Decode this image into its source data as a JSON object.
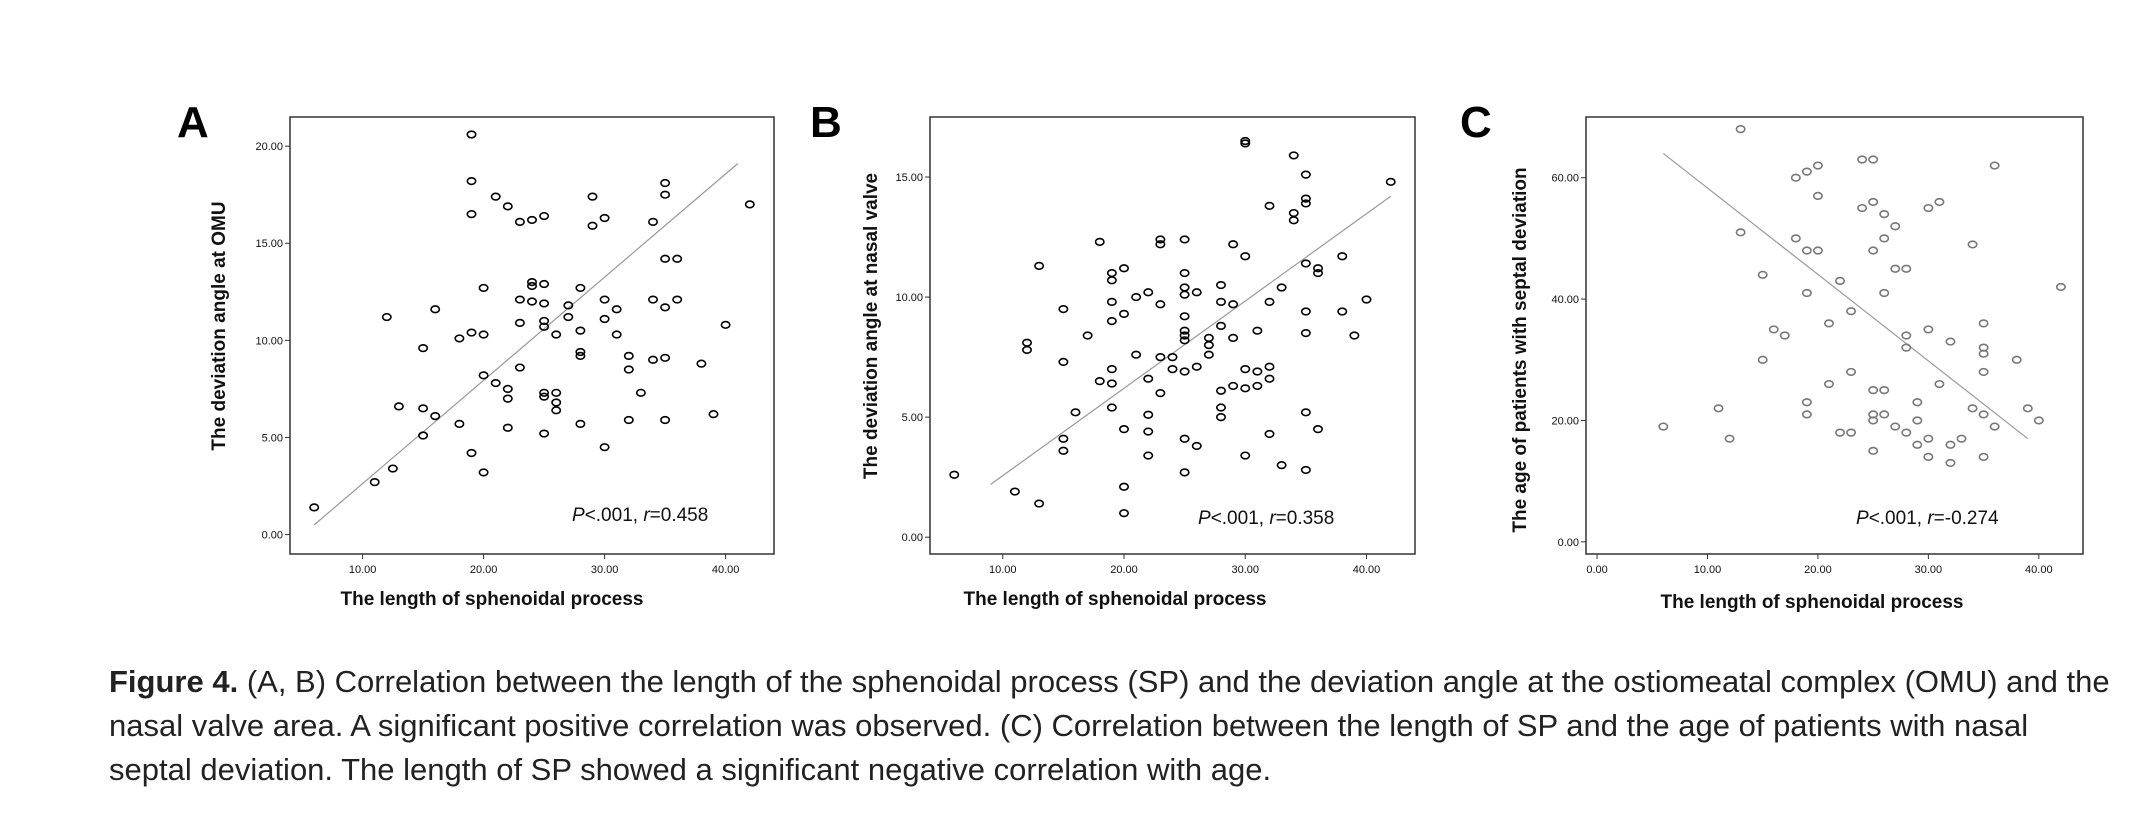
{
  "caption": {
    "label": "Figure 4.",
    "text": "(A, B) Correlation between the length of the sphenoidal process (SP) and the deviation angle at the ostiomeatal complex (OMU) and the nasal valve area. A significant positive correlation was observed. (C) Correlation between the length of SP and the age of patients with nasal septal deviation. The length of SP showed a significant negative correlation with age."
  },
  "chart_data": [
    {
      "panel": "A",
      "type": "scatter",
      "xlabel": "The length of sphenoidal process",
      "ylabel": "The deviation angle at OMU",
      "xlim": [
        4,
        44
      ],
      "ylim": [
        -1,
        21.5
      ],
      "xticks": [
        "10.00",
        "20.00",
        "30.00",
        "40.00"
      ],
      "yticks": [
        "0.00",
        "5.00",
        "10.00",
        "15.00",
        "20.00"
      ],
      "stat": {
        "p": "P",
        "p_rest": "<.001, ",
        "r": "r",
        "r_rest": "=0.458"
      },
      "color": "#000000",
      "trendline": [
        [
          6,
          0.5
        ],
        [
          41,
          19.1
        ]
      ],
      "points": [
        [
          6,
          1.4
        ],
        [
          11,
          2.7
        ],
        [
          12.5,
          3.4
        ],
        [
          15,
          5.1
        ],
        [
          15,
          6.5
        ],
        [
          16,
          6.1
        ],
        [
          12,
          11.2
        ],
        [
          13,
          6.6
        ],
        [
          15,
          9.6
        ],
        [
          16,
          11.6
        ],
        [
          18,
          10.1
        ],
        [
          18,
          5.7
        ],
        [
          19,
          4.2
        ],
        [
          19,
          10.4
        ],
        [
          19,
          16.5
        ],
        [
          19,
          18.2
        ],
        [
          19,
          20.6
        ],
        [
          20,
          3.2
        ],
        [
          20,
          8.2
        ],
        [
          20,
          10.3
        ],
        [
          20,
          12.7
        ],
        [
          21,
          7.8
        ],
        [
          21,
          17.4
        ],
        [
          22,
          7
        ],
        [
          22,
          7.5
        ],
        [
          22,
          5.5
        ],
        [
          22,
          16.9
        ],
        [
          23,
          8.6
        ],
        [
          23,
          10.9
        ],
        [
          23,
          12.1
        ],
        [
          23,
          16.1
        ],
        [
          24,
          12.8
        ],
        [
          24,
          13
        ],
        [
          24,
          12
        ],
        [
          24,
          16.2
        ],
        [
          25,
          5.2
        ],
        [
          25,
          7.1
        ],
        [
          25,
          7.3
        ],
        [
          25,
          10.7
        ],
        [
          25,
          11
        ],
        [
          25,
          11.9
        ],
        [
          25,
          12.9
        ],
        [
          25,
          16.4
        ],
        [
          26,
          6.4
        ],
        [
          26,
          6.8
        ],
        [
          26,
          7.3
        ],
        [
          26,
          10.3
        ],
        [
          27,
          11.2
        ],
        [
          27,
          11.8
        ],
        [
          28,
          5.7
        ],
        [
          28,
          9.2
        ],
        [
          28,
          9.4
        ],
        [
          28,
          10.5
        ],
        [
          28,
          12.7
        ],
        [
          29,
          15.9
        ],
        [
          29,
          17.4
        ],
        [
          30,
          4.5
        ],
        [
          30,
          11.1
        ],
        [
          30,
          12.1
        ],
        [
          30,
          16.3
        ],
        [
          31,
          10.3
        ],
        [
          31,
          11.6
        ],
        [
          32,
          5.9
        ],
        [
          32,
          8.5
        ],
        [
          32,
          9.2
        ],
        [
          33,
          7.3
        ],
        [
          34,
          9
        ],
        [
          34,
          12.1
        ],
        [
          34,
          16.1
        ],
        [
          35,
          5.9
        ],
        [
          35,
          9.1
        ],
        [
          35,
          11.7
        ],
        [
          35,
          14.2
        ],
        [
          35,
          17.5
        ],
        [
          35,
          18.1
        ],
        [
          36,
          12.1
        ],
        [
          36,
          14.2
        ],
        [
          38,
          8.8
        ],
        [
          39,
          6.2
        ],
        [
          40,
          10.8
        ],
        [
          42,
          17
        ]
      ]
    },
    {
      "panel": "B",
      "type": "scatter",
      "xlabel": "The length of sphenoidal process",
      "ylabel": "The deviation angle at nasal valve",
      "xlim": [
        4,
        44
      ],
      "ylim": [
        -0.7,
        17.5
      ],
      "xticks": [
        "10.00",
        "20.00",
        "30.00",
        "40.00"
      ],
      "yticks": [
        "0.00",
        "5.00",
        "10.00",
        "15.00"
      ],
      "stat": {
        "p": "P",
        "p_rest": "<.001, ",
        "r": "r",
        "r_rest": "=0.358"
      },
      "color": "#000000",
      "trendline": [
        [
          9,
          2.2
        ],
        [
          42,
          14.2
        ]
      ],
      "points": [
        [
          6,
          2.6
        ],
        [
          11,
          1.9
        ],
        [
          12,
          7.8
        ],
        [
          12,
          8.1
        ],
        [
          13,
          1.4
        ],
        [
          13,
          11.3
        ],
        [
          15,
          3.6
        ],
        [
          15,
          4.1
        ],
        [
          15,
          7.3
        ],
        [
          15,
          9.5
        ],
        [
          16,
          5.2
        ],
        [
          17,
          8.4
        ],
        [
          18,
          6.5
        ],
        [
          18,
          12.3
        ],
        [
          19,
          5.4
        ],
        [
          19,
          6.4
        ],
        [
          19,
          7
        ],
        [
          19,
          9
        ],
        [
          19,
          9.8
        ],
        [
          19,
          10.7
        ],
        [
          19,
          11
        ],
        [
          20,
          1
        ],
        [
          20,
          2.1
        ],
        [
          20,
          4.5
        ],
        [
          20,
          9.3
        ],
        [
          20,
          11.2
        ],
        [
          21,
          7.6
        ],
        [
          21,
          10
        ],
        [
          22,
          3.4
        ],
        [
          22,
          4.4
        ],
        [
          22,
          5.1
        ],
        [
          22,
          6.6
        ],
        [
          22,
          10.2
        ],
        [
          23,
          6
        ],
        [
          23,
          7.5
        ],
        [
          23,
          9.7
        ],
        [
          23,
          12.2
        ],
        [
          23,
          12.4
        ],
        [
          24,
          7
        ],
        [
          24,
          7.5
        ],
        [
          25,
          2.7
        ],
        [
          25,
          4.1
        ],
        [
          25,
          6.9
        ],
        [
          25,
          8.2
        ],
        [
          25,
          8.4
        ],
        [
          25,
          8.6
        ],
        [
          25,
          9.2
        ],
        [
          25,
          10.1
        ],
        [
          25,
          10.4
        ],
        [
          25,
          11
        ],
        [
          25,
          12.4
        ],
        [
          26,
          3.8
        ],
        [
          26,
          7.1
        ],
        [
          26,
          10.2
        ],
        [
          27,
          7.6
        ],
        [
          27,
          8
        ],
        [
          27,
          8.3
        ],
        [
          28,
          5
        ],
        [
          28,
          5.4
        ],
        [
          28,
          6.1
        ],
        [
          28,
          8.8
        ],
        [
          28,
          9.8
        ],
        [
          28,
          10.5
        ],
        [
          29,
          6.3
        ],
        [
          29,
          8.3
        ],
        [
          29,
          9.7
        ],
        [
          29,
          12.2
        ],
        [
          30,
          3.4
        ],
        [
          30,
          6.2
        ],
        [
          30,
          7
        ],
        [
          30,
          11.7
        ],
        [
          30,
          16.4
        ],
        [
          30,
          16.5
        ],
        [
          31,
          6.3
        ],
        [
          31,
          6.9
        ],
        [
          31,
          8.6
        ],
        [
          32,
          4.3
        ],
        [
          32,
          6.6
        ],
        [
          32,
          7.1
        ],
        [
          32,
          9.8
        ],
        [
          32,
          13.8
        ],
        [
          33,
          3
        ],
        [
          33,
          10.4
        ],
        [
          34,
          13.2
        ],
        [
          34,
          13.5
        ],
        [
          34,
          15.9
        ],
        [
          35,
          2.8
        ],
        [
          35,
          5.2
        ],
        [
          35,
          8.5
        ],
        [
          35,
          9.4
        ],
        [
          35,
          11.4
        ],
        [
          35,
          13.9
        ],
        [
          35,
          14.1
        ],
        [
          35,
          15.1
        ],
        [
          36,
          4.5
        ],
        [
          36,
          11
        ],
        [
          36,
          11.2
        ],
        [
          38,
          9.4
        ],
        [
          38,
          11.7
        ],
        [
          39,
          8.4
        ],
        [
          40,
          9.9
        ],
        [
          42,
          14.8
        ]
      ]
    },
    {
      "panel": "C",
      "type": "scatter",
      "xlabel": "The length of sphenoidal process",
      "ylabel": "The age of patients with septal deviation",
      "xlim": [
        -1,
        44
      ],
      "ylim": [
        -2,
        70
      ],
      "xticks": [
        "0.00",
        "10.00",
        "20.00",
        "30.00",
        "40.00"
      ],
      "yticks": [
        "0.00",
        "20.00",
        "40.00",
        "60.00"
      ],
      "stat": {
        "p": "P",
        "p_rest": "<.001, ",
        "r": "r",
        "r_rest": "=-0.274"
      },
      "color": "#777777",
      "trendline": [
        [
          6,
          64
        ],
        [
          39,
          17
        ]
      ],
      "points": [
        [
          6,
          19
        ],
        [
          11,
          22
        ],
        [
          12,
          17
        ],
        [
          13,
          68
        ],
        [
          13,
          51
        ],
        [
          15,
          30
        ],
        [
          15,
          44
        ],
        [
          16,
          35
        ],
        [
          17,
          34
        ],
        [
          18,
          50
        ],
        [
          18,
          60
        ],
        [
          19,
          21
        ],
        [
          19,
          23
        ],
        [
          19,
          41
        ],
        [
          19,
          48
        ],
        [
          19,
          61
        ],
        [
          20,
          48
        ],
        [
          20,
          57
        ],
        [
          20,
          62
        ],
        [
          21,
          26
        ],
        [
          21,
          36
        ],
        [
          22,
          18
        ],
        [
          22,
          43
        ],
        [
          23,
          18
        ],
        [
          23,
          28
        ],
        [
          23,
          38
        ],
        [
          24,
          55
        ],
        [
          24,
          63
        ],
        [
          25,
          15
        ],
        [
          25,
          20
        ],
        [
          25,
          21
        ],
        [
          25,
          25
        ],
        [
          25,
          48
        ],
        [
          25,
          56
        ],
        [
          25,
          63
        ],
        [
          26,
          21
        ],
        [
          26,
          25
        ],
        [
          26,
          41
        ],
        [
          26,
          50
        ],
        [
          26,
          54
        ],
        [
          27,
          19
        ],
        [
          27,
          45
        ],
        [
          27,
          52
        ],
        [
          28,
          18
        ],
        [
          28,
          32
        ],
        [
          28,
          34
        ],
        [
          28,
          45
        ],
        [
          29,
          16
        ],
        [
          29,
          20
        ],
        [
          29,
          23
        ],
        [
          30,
          14
        ],
        [
          30,
          17
        ],
        [
          30,
          35
        ],
        [
          30,
          55
        ],
        [
          31,
          26
        ],
        [
          31,
          56
        ],
        [
          32,
          13
        ],
        [
          32,
          16
        ],
        [
          32,
          33
        ],
        [
          33,
          17
        ],
        [
          34,
          22
        ],
        [
          34,
          49
        ],
        [
          35,
          14
        ],
        [
          35,
          21
        ],
        [
          35,
          28
        ],
        [
          35,
          31
        ],
        [
          35,
          32
        ],
        [
          35,
          36
        ],
        [
          36,
          19
        ],
        [
          36,
          62
        ],
        [
          38,
          30
        ],
        [
          39,
          22
        ],
        [
          40,
          20
        ],
        [
          42,
          42
        ]
      ]
    }
  ]
}
